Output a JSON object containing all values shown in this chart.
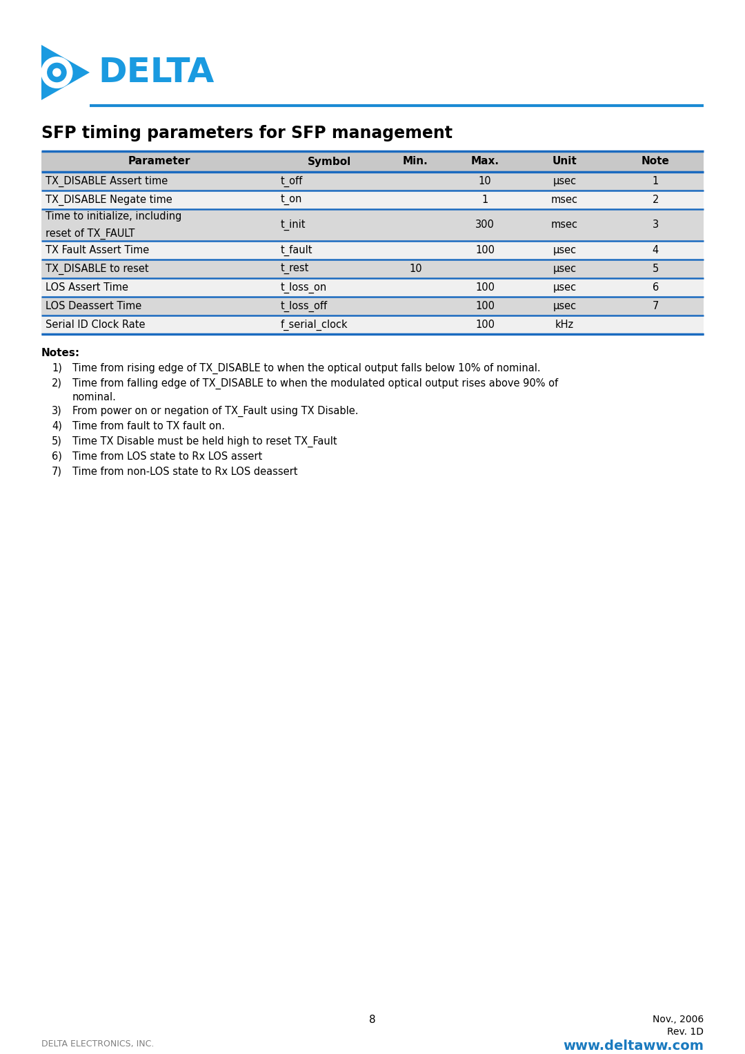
{
  "title": "SFP timing parameters for SFP management",
  "page_number": "8",
  "date_text": "Nov., 2006",
  "rev_text": "Rev. 1D",
  "company_left": "DELTA ELECTRONICS, INC.",
  "website": "www.deltaww.com",
  "header_bg": "#c8c8c8",
  "row_bg_dark": "#d8d8d8",
  "row_bg_light": "#f0f0f0",
  "border_color": "#1a6abf",
  "title_color": "#000000",
  "blue_line_color": "#1a8ad4",
  "website_color": "#1a7abf",
  "company_color": "#808080",
  "table_headers": [
    "Parameter",
    "Symbol",
    "Min.",
    "Max.",
    "Unit",
    "Note"
  ],
  "table_rows": [
    [
      "TX_DISABLE Assert time",
      "t_off",
      "",
      "10",
      "μsec",
      "1"
    ],
    [
      "TX_DISABLE Negate time",
      "t_on",
      "",
      "1",
      "msec",
      "2"
    ],
    [
      "Time to initialize, including\nreset of TX_FAULT",
      "t_init",
      "",
      "300",
      "msec",
      "3"
    ],
    [
      "TX Fault Assert Time",
      "t_fault",
      "",
      "100",
      "μsec",
      "4"
    ],
    [
      "TX_DISABLE to reset",
      "t_rest",
      "10",
      "",
      "μsec",
      "5"
    ],
    [
      "LOS Assert Time",
      "t_loss_on",
      "",
      "100",
      "μsec",
      "6"
    ],
    [
      "LOS Deassert Time",
      "t_loss_off",
      "",
      "100",
      "μsec",
      "7"
    ],
    [
      "Serial ID Clock Rate",
      "f_serial_clock",
      "",
      "100",
      "kHz",
      ""
    ]
  ],
  "notes_title": "Notes:",
  "notes": [
    "Time from rising edge of TX_DISABLE to when the optical output falls below 10% of nominal.",
    "Time from falling edge of TX_DISABLE to when the modulated optical output rises above 90% of\nnominal.",
    "From power on or negation of TX_Fault using TX Disable.",
    "Time from fault to TX fault on.",
    "Time TX Disable must be held high to reset TX_Fault",
    "Time from LOS state to Rx LOS assert",
    "Time from non-LOS state to Rx LOS deassert"
  ],
  "logo_color": "#1a9ae0",
  "logo_text_color": "#1a9ae0"
}
